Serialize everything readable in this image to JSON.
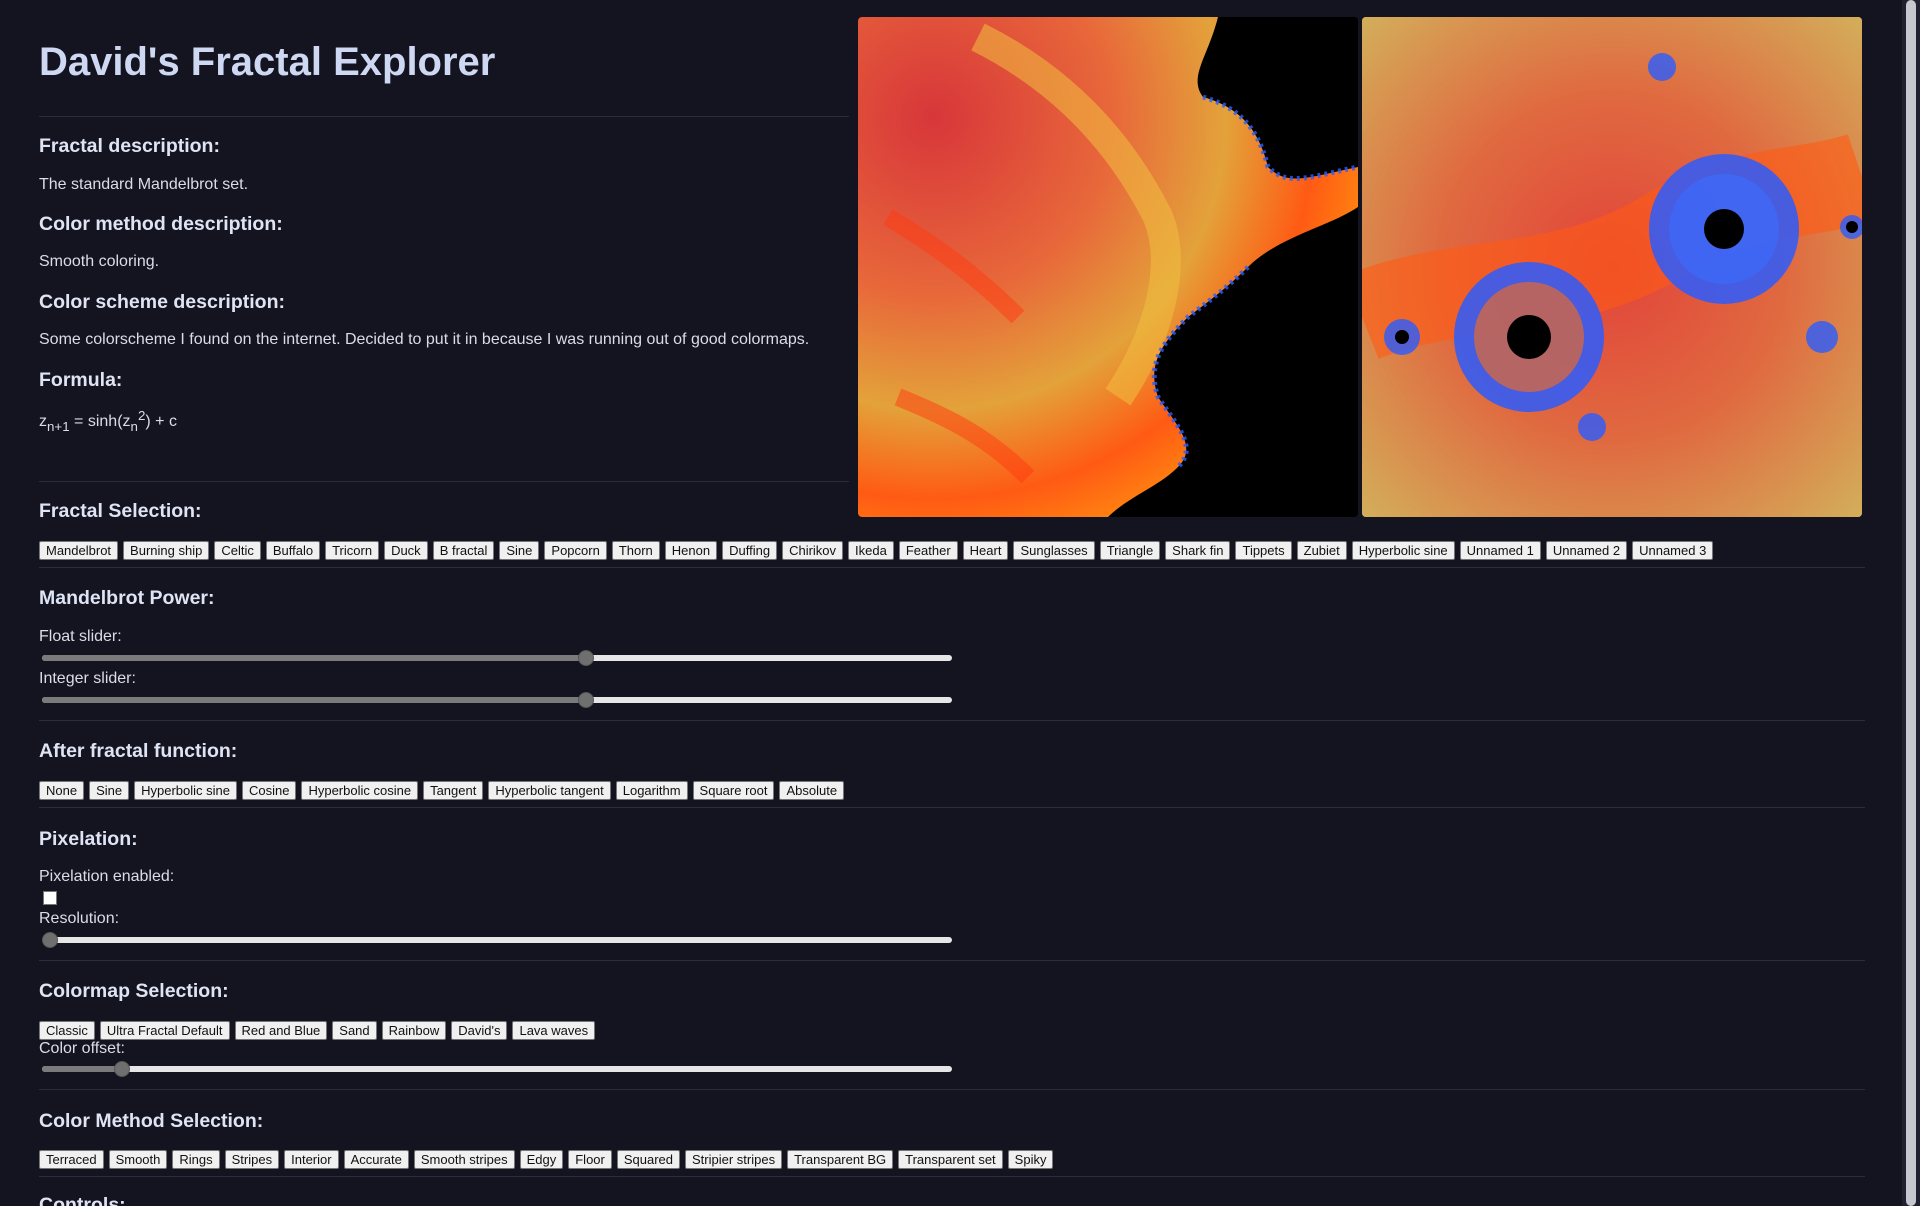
{
  "title": "David's Fractal Explorer",
  "sections": {
    "fractal_description_heading": "Fractal description:",
    "fractal_description": "The standard Mandelbrot set.",
    "color_method_heading": "Color method description:",
    "color_method_description": "Smooth coloring.",
    "color_scheme_heading": "Color scheme description:",
    "color_scheme_description": "Some colorscheme I found on the internet. Decided to put it in because I was running out of good colormaps.",
    "formula_heading": "Formula:",
    "formula": {
      "z": "z",
      "sub1": "n+1",
      "eq": " = sinh(z",
      "sub2": "n",
      "sup": "2",
      "rest": ") + c"
    }
  },
  "fractal_selection": {
    "heading": "Fractal Selection:",
    "buttons": [
      "Mandelbrot",
      "Burning ship",
      "Celtic",
      "Buffalo",
      "Tricorn",
      "Duck",
      "B fractal",
      "Sine",
      "Popcorn",
      "Thorn",
      "Henon",
      "Duffing",
      "Chirikov",
      "Ikeda",
      "Feather",
      "Heart",
      "Sunglasses",
      "Triangle",
      "Shark fin",
      "Tippets",
      "Zubiet",
      "Hyperbolic sine",
      "Unnamed 1",
      "Unnamed 2",
      "Unnamed 3"
    ]
  },
  "mandelbrot_power": {
    "heading": "Mandelbrot Power:",
    "float_label": "Float slider:",
    "integer_label": "Integer slider:",
    "float_value": 0.6,
    "integer_value": 0.6
  },
  "after_function": {
    "heading": "After fractal function:",
    "buttons": [
      "None",
      "Sine",
      "Hyperbolic sine",
      "Cosine",
      "Hyperbolic cosine",
      "Tangent",
      "Hyperbolic tangent",
      "Logarithm",
      "Square root",
      "Absolute"
    ]
  },
  "pixelation": {
    "heading": "Pixelation:",
    "enabled_label": "Pixelation enabled:",
    "enabled": false,
    "resolution_label": "Resolution:",
    "resolution_value": 0.0
  },
  "colormap": {
    "heading": "Colormap Selection:",
    "buttons": [
      "Classic",
      "Ultra Fractal Default",
      "Red and Blue",
      "Sand",
      "Rainbow",
      "David's",
      "Lava waves"
    ],
    "offset_label": "Color offset:",
    "offset_value": 0.08
  },
  "color_method": {
    "heading": "Color Method Selection:",
    "buttons": [
      "Terraced",
      "Smooth",
      "Rings",
      "Stripes",
      "Interior",
      "Accurate",
      "Smooth stripes",
      "Edgy",
      "Floor",
      "Squared",
      "Stripier stripes",
      "Transparent BG",
      "Transparent set",
      "Spiky"
    ]
  },
  "controls_heading": "Controls:",
  "colors": {
    "fractal_red": "#d9383a",
    "fractal_orange": "#ff6a10",
    "fractal_gold": "#e6b23a",
    "fractal_blue": "#2a5cff"
  }
}
